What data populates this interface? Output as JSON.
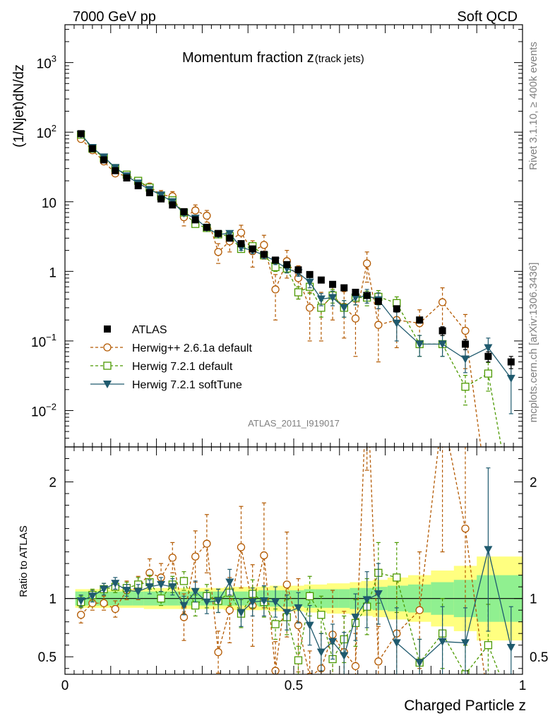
{
  "header": {
    "energy": "7000 GeV pp",
    "category": "Soft QCD"
  },
  "side": {
    "rivet": "Rivet 3.1.10, ≥ 400k events",
    "source": "mcplots.cern.ch [arXiv:1306.3436]"
  },
  "chart_data": {
    "type": "scatter",
    "title_main": "Momentum fraction z",
    "title_sub": "(track jets)",
    "ylabel": "(1/Njet)dN/dz",
    "ratio_ylabel": "Ratio to ATLAS",
    "xlabel": "Charged Particle z",
    "analysis_tag": "ATLAS_2011_I919017",
    "xlim": [
      0,
      1
    ],
    "main_ylim": [
      0.003,
      3500
    ],
    "ratio_ylim": [
      0.35,
      2.3
    ],
    "yscale": "log",
    "x_ticks": [
      {
        "v": 0,
        "label": "0"
      },
      {
        "v": 0.5,
        "label": "0.5"
      },
      {
        "v": 1,
        "label": "1"
      }
    ],
    "main_y_ticks": [
      {
        "v": 0.01,
        "b": "10",
        "e": "−2"
      },
      {
        "v": 0.1,
        "b": "10",
        "e": "−1"
      },
      {
        "v": 1,
        "b": "1",
        "e": ""
      },
      {
        "v": 10,
        "b": "10",
        "e": ""
      },
      {
        "v": 100,
        "b": "10",
        "e": "2"
      },
      {
        "v": 1000,
        "b": "10",
        "e": "3"
      }
    ],
    "ratio_y_ticks": [
      {
        "v": 0.5,
        "label": "0.5"
      },
      {
        "v": 1,
        "label": "1"
      },
      {
        "v": 2,
        "label": "2"
      }
    ],
    "x": [
      0.035,
      0.06,
      0.085,
      0.11,
      0.135,
      0.16,
      0.185,
      0.21,
      0.235,
      0.26,
      0.285,
      0.31,
      0.335,
      0.36,
      0.385,
      0.41,
      0.435,
      0.46,
      0.485,
      0.51,
      0.535,
      0.56,
      0.585,
      0.61,
      0.635,
      0.66,
      0.685,
      0.725,
      0.775,
      0.825,
      0.875,
      0.925,
      0.975
    ],
    "data_band_inner": [
      0.06,
      0.06,
      0.06,
      0.06,
      0.06,
      0.06,
      0.06,
      0.06,
      0.06,
      0.06,
      0.06,
      0.06,
      0.06,
      0.06,
      0.06,
      0.06,
      0.07,
      0.07,
      0.07,
      0.07,
      0.08,
      0.08,
      0.08,
      0.08,
      0.09,
      0.09,
      0.1,
      0.11,
      0.12,
      0.14,
      0.16,
      0.2,
      0.2
    ],
    "data_band_outer": [
      0.08,
      0.08,
      0.08,
      0.08,
      0.08,
      0.08,
      0.09,
      0.09,
      0.09,
      0.09,
      0.09,
      0.09,
      0.09,
      0.1,
      0.1,
      0.1,
      0.1,
      0.11,
      0.11,
      0.11,
      0.12,
      0.12,
      0.13,
      0.13,
      0.14,
      0.15,
      0.16,
      0.18,
      0.2,
      0.24,
      0.28,
      0.36,
      0.36
    ],
    "series": [
      {
        "name": "ATLAS",
        "legend": "ATLAS",
        "style": "data",
        "color": "#000000",
        "values": [
          95,
          58,
          40,
          28,
          22,
          17,
          13.5,
          11,
          9,
          7.2,
          5.5,
          4.3,
          3.5,
          3.0,
          2.5,
          2.1,
          1.75,
          1.45,
          1.25,
          1.05,
          0.9,
          0.75,
          0.65,
          0.58,
          0.5,
          0.45,
          0.37,
          0.29,
          0.2,
          0.14,
          0.09,
          0.06,
          0.05
        ],
        "errors": [
          3,
          2,
          1.5,
          1,
          0.8,
          0.6,
          0.5,
          0.4,
          0.35,
          0.3,
          0.25,
          0.2,
          0.18,
          0.15,
          0.13,
          0.12,
          0.1,
          0.09,
          0.08,
          0.07,
          0.06,
          0.05,
          0.05,
          0.04,
          0.04,
          0.04,
          0.03,
          0.03,
          0.02,
          0.02,
          0.015,
          0.01,
          0.01
        ]
      },
      {
        "name": "Herwig++ 2.6.1a default",
        "legend": "Herwig++ 2.6.1a default",
        "style": "circle",
        "dash": "4,3",
        "color": "#b35900",
        "values": [
          80,
          55,
          38,
          25.5,
          23.5,
          18.5,
          16.5,
          12.5,
          12,
          6,
          7.5,
          6.3,
          1.9,
          2.7,
          3.6,
          1.95,
          2.4,
          0.55,
          1.4,
          0.8,
          0.3,
          0.3,
          0.45,
          0.31,
          0.21,
          1.3,
          0.17,
          0.2,
          0.18,
          0.36,
          0.14,
          0.0005,
          0.0005
        ],
        "ratio": [
          0.86,
          0.96,
          0.96,
          0.91,
          1.07,
          1.09,
          1.22,
          1.18,
          1.35,
          0.84,
          1.36,
          1.47,
          0.54,
          0.9,
          1.44,
          0.94,
          1.37,
          0.38,
          1.12,
          0.77,
          0.33,
          0.4,
          0.69,
          0.54,
          0.42,
          2.9,
          0.46,
          0.7,
          0.9,
          2.6,
          1.6,
          0.1,
          0.1
        ],
        "errors": [
          3,
          2.5,
          2,
          2,
          2,
          2,
          2,
          2,
          2,
          1.5,
          1.5,
          1.2,
          0.6,
          0.8,
          1,
          0.8,
          0.9,
          0.35,
          0.6,
          0.4,
          0.2,
          0.2,
          0.25,
          0.2,
          0.15,
          0.6,
          0.12,
          0.12,
          0.1,
          0.22,
          0.1,
          0.0,
          0.0
        ],
        "ratio_errors": [
          0.07,
          0.06,
          0.06,
          0.07,
          0.08,
          0.1,
          0.12,
          0.12,
          0.13,
          0.2,
          0.22,
          0.25,
          0.18,
          0.28,
          0.35,
          0.35,
          0.45,
          0.25,
          0.45,
          0.4,
          0.22,
          0.3,
          0.38,
          0.35,
          0.28,
          0.8,
          0.3,
          0.45,
          0.5,
          1.2,
          1.0,
          0.0,
          0.0
        ]
      },
      {
        "name": "Herwig 7.2.1 default",
        "legend": "Herwig 7.2.1 default",
        "style": "square",
        "dash": "4,3",
        "color": "#4c9900",
        "values": [
          92,
          58,
          43,
          30.5,
          24.5,
          20,
          16,
          12,
          10.5,
          7,
          4.8,
          4.2,
          3.4,
          3.2,
          2.1,
          2.3,
          1.7,
          1.15,
          1.1,
          0.5,
          0.6,
          0.3,
          0.45,
          0.3,
          0.42,
          0.42,
          0.43,
          0.35,
          0.09,
          0.09,
          0.022,
          0.034,
          0.0005
        ],
        "ratio": [
          0.97,
          1.03,
          1.08,
          1.1,
          1.09,
          1.12,
          1.14,
          1.0,
          1.12,
          1.15,
          0.94,
          1.02,
          0.98,
          1.05,
          0.87,
          1.04,
          0.97,
          0.78,
          0.84,
          0.47,
          1.02,
          0.86,
          0.48,
          0.65,
          0.79,
          0.93,
          1.22,
          1.18,
          0.45,
          0.7,
          0.35,
          0.6,
          0.1
        ],
        "errors": [
          3,
          2,
          1.6,
          1.2,
          1,
          0.8,
          0.7,
          0.6,
          0.5,
          0.4,
          0.3,
          0.3,
          0.25,
          0.25,
          0.2,
          0.2,
          0.18,
          0.15,
          0.15,
          0.1,
          0.12,
          0.08,
          0.1,
          0.08,
          0.09,
          0.1,
          0.1,
          0.08,
          0.03,
          0.03,
          0.01,
          0.015,
          0.0
        ],
        "ratio_errors": [
          0.05,
          0.05,
          0.05,
          0.05,
          0.05,
          0.06,
          0.06,
          0.06,
          0.07,
          0.08,
          0.09,
          0.1,
          0.1,
          0.11,
          0.12,
          0.12,
          0.13,
          0.13,
          0.15,
          0.12,
          0.17,
          0.16,
          0.13,
          0.2,
          0.2,
          0.24,
          0.26,
          0.3,
          0.2,
          0.3,
          0.25,
          0.35,
          0.0
        ]
      },
      {
        "name": "Herwig 7.2.1 softTune",
        "legend": "Herwig 7.2.1 softTune",
        "style": "triangle",
        "dash": "",
        "color": "#1f5a6e",
        "values": [
          93,
          60,
          44,
          31,
          23.5,
          18.5,
          15,
          12.5,
          10,
          6.8,
          5.8,
          4.2,
          3.4,
          3.5,
          2.2,
          2.0,
          1.7,
          1.4,
          1.1,
          0.95,
          0.7,
          0.4,
          0.42,
          0.3,
          0.42,
          0.45,
          0.39,
          0.18,
          0.09,
          0.09,
          0.055,
          0.08,
          0.029
        ],
        "ratio": [
          0.98,
          1.02,
          1.08,
          1.13,
          1.07,
          1.06,
          1.1,
          1.12,
          1.1,
          0.94,
          1.06,
          0.97,
          0.98,
          1.14,
          0.88,
          0.97,
          0.98,
          0.97,
          0.88,
          0.92,
          0.77,
          0.54,
          0.63,
          0.51,
          0.84,
          0.99,
          1.04,
          0.62,
          0.45,
          0.63,
          0.62,
          1.42,
          0.58
        ],
        "errors": [
          3,
          2,
          1.6,
          1.2,
          1,
          0.8,
          0.7,
          0.6,
          0.5,
          0.4,
          0.3,
          0.3,
          0.25,
          0.25,
          0.2,
          0.2,
          0.18,
          0.15,
          0.15,
          0.1,
          0.12,
          0.08,
          0.1,
          0.08,
          0.09,
          0.1,
          0.1,
          0.08,
          0.03,
          0.03,
          0.02,
          0.03,
          0.02
        ],
        "ratio_errors": [
          0.05,
          0.05,
          0.05,
          0.05,
          0.05,
          0.06,
          0.06,
          0.06,
          0.07,
          0.08,
          0.09,
          0.1,
          0.1,
          0.11,
          0.12,
          0.12,
          0.13,
          0.13,
          0.15,
          0.13,
          0.17,
          0.16,
          0.15,
          0.2,
          0.2,
          0.24,
          0.26,
          0.3,
          0.2,
          0.3,
          0.3,
          0.7,
          0.35
        ]
      }
    ]
  }
}
